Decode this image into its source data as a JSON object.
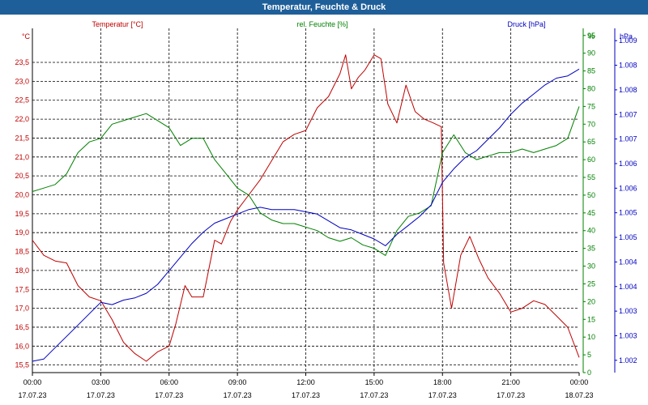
{
  "window": {
    "title": "Temperatur, Feuchte & Druck"
  },
  "chart_data": {
    "type": "line",
    "title": "Temperatur, Feuchte & Druck",
    "grid": true,
    "x_ticks": [
      {
        "time": "00:00",
        "date": "17.07.23"
      },
      {
        "time": "03:00",
        "date": "17.07.23"
      },
      {
        "time": "06:00",
        "date": "17.07.23"
      },
      {
        "time": "09:00",
        "date": "17.07.23"
      },
      {
        "time": "12:00",
        "date": "17.07.23"
      },
      {
        "time": "15:00",
        "date": "17.07.23"
      },
      {
        "time": "18:00",
        "date": "17.07.23"
      },
      {
        "time": "21:00",
        "date": "17.07.23"
      },
      {
        "time": "00:00",
        "date": "18.07.23"
      }
    ],
    "axes": {
      "temperature": {
        "unit": "°C",
        "label": "Temperatur [°C]",
        "color": "#c00000",
        "range": [
          15.3,
          24.4
        ],
        "ticks": [
          "15,5",
          "16,0",
          "16,5",
          "17,0",
          "17,5",
          "18,0",
          "18,5",
          "19,0",
          "19,5",
          "20,0",
          "20,5",
          "21,0",
          "21,5",
          "22,0",
          "22,5",
          "23,0",
          "23,5"
        ]
      },
      "humidity": {
        "unit": "%",
        "label": "rel. Feuchte [%]",
        "color": "#008000",
        "range": [
          0,
          97
        ],
        "ticks": [
          "0",
          "5",
          "10",
          "15",
          "20",
          "25",
          "30",
          "35",
          "40",
          "45",
          "50",
          "55",
          "60",
          "65",
          "70",
          "75",
          "80",
          "85",
          "90",
          "95"
        ]
      },
      "pressure": {
        "unit": "hPa",
        "label": "Druck [hPa]",
        "color": "#0000c0",
        "range": [
          1002.0,
          1009.6
        ],
        "ticks": [
          "1.002",
          "1.003",
          "1.003",
          "1.004",
          "1.004",
          "1.005",
          "1.005",
          "1.006",
          "1.006",
          "1.007",
          "1.007",
          "1.008",
          "1.008",
          "1.009"
        ]
      }
    },
    "series": [
      {
        "name": "Temperatur [°C]",
        "axis": "temperature",
        "color": "#c00000",
        "x": [
          0,
          0.5,
          1,
          1.5,
          2,
          2.5,
          3,
          3.5,
          4,
          4.5,
          5,
          5.5,
          6,
          6.3,
          6.7,
          7,
          7.5,
          8,
          8.3,
          8.7,
          9,
          9.5,
          10,
          10.5,
          11,
          11.5,
          12,
          12.5,
          13,
          13.5,
          13.75,
          14,
          14.3,
          14.6,
          15,
          15.3,
          15.6,
          16,
          16.4,
          16.8,
          17.2,
          17.6,
          17.95,
          18.05,
          18.4,
          18.8,
          19.2,
          19.6,
          20,
          20.5,
          21,
          21.5,
          22,
          22.5,
          23,
          23.5,
          24
        ],
        "y": [
          18.8,
          18.4,
          18.25,
          18.2,
          17.6,
          17.3,
          17.2,
          16.7,
          16.1,
          15.8,
          15.6,
          15.85,
          16.0,
          16.6,
          17.6,
          17.3,
          17.3,
          18.8,
          18.7,
          19.3,
          19.6,
          20.0,
          20.4,
          20.9,
          21.4,
          21.6,
          21.7,
          22.3,
          22.6,
          23.2,
          23.7,
          22.8,
          23.1,
          23.3,
          23.7,
          23.6,
          22.4,
          21.9,
          22.9,
          22.2,
          22.0,
          21.9,
          21.8,
          18.2,
          17.0,
          18.4,
          18.9,
          18.3,
          17.8,
          17.4,
          16.9,
          17.0,
          17.2,
          17.1,
          16.8,
          16.5,
          15.7
        ]
      },
      {
        "name": "rel. Feuchte [%]",
        "axis": "humidity",
        "color": "#008000",
        "x": [
          0,
          0.5,
          1,
          1.5,
          2,
          2.5,
          3,
          3.5,
          4,
          4.5,
          5,
          5.5,
          6,
          6.5,
          7,
          7.5,
          8,
          8.5,
          9,
          9.5,
          10,
          10.5,
          11,
          11.5,
          12,
          12.5,
          13,
          13.5,
          14,
          14.5,
          15,
          15.5,
          16,
          16.5,
          17,
          17.5,
          18,
          18.5,
          19,
          19.5,
          20,
          20.5,
          21,
          21.5,
          22,
          22.5,
          23,
          23.5,
          24
        ],
        "y": [
          51,
          52,
          53,
          56,
          62,
          65,
          66,
          70,
          71,
          72,
          73,
          71,
          69,
          64,
          66,
          66,
          60,
          56,
          52,
          50,
          45,
          43,
          42,
          42,
          41,
          40,
          38,
          37,
          38,
          36,
          35,
          33,
          40,
          44,
          45,
          47,
          62,
          67,
          62,
          60,
          61,
          62,
          62,
          63,
          62,
          63,
          64,
          66,
          75
        ]
      },
      {
        "name": "Druck [hPa]",
        "axis": "pressure",
        "color": "#0000c0",
        "x": [
          0,
          0.5,
          1,
          1.5,
          2,
          2.5,
          3,
          3.5,
          4,
          4.5,
          5,
          5.5,
          6,
          6.5,
          7,
          7.5,
          8,
          8.5,
          9,
          9.5,
          10,
          10.5,
          11,
          11.5,
          12,
          12.5,
          13,
          13.5,
          14,
          14.5,
          15,
          15.5,
          16,
          16.5,
          17,
          17.5,
          18,
          18.5,
          19,
          19.5,
          20,
          20.5,
          21,
          21.5,
          22,
          22.5,
          23,
          23.5,
          24
        ],
        "y": [
          1002.25,
          1002.3,
          1002.55,
          1002.8,
          1003.05,
          1003.3,
          1003.55,
          1003.5,
          1003.6,
          1003.65,
          1003.75,
          1003.95,
          1004.25,
          1004.55,
          1004.85,
          1005.1,
          1005.3,
          1005.4,
          1005.5,
          1005.6,
          1005.65,
          1005.6,
          1005.6,
          1005.6,
          1005.55,
          1005.5,
          1005.35,
          1005.2,
          1005.15,
          1005.05,
          1004.95,
          1004.8,
          1005.05,
          1005.25,
          1005.45,
          1005.7,
          1006.2,
          1006.5,
          1006.75,
          1006.9,
          1007.15,
          1007.4,
          1007.7,
          1007.95,
          1008.15,
          1008.35,
          1008.5,
          1008.55,
          1008.7
        ]
      }
    ]
  }
}
